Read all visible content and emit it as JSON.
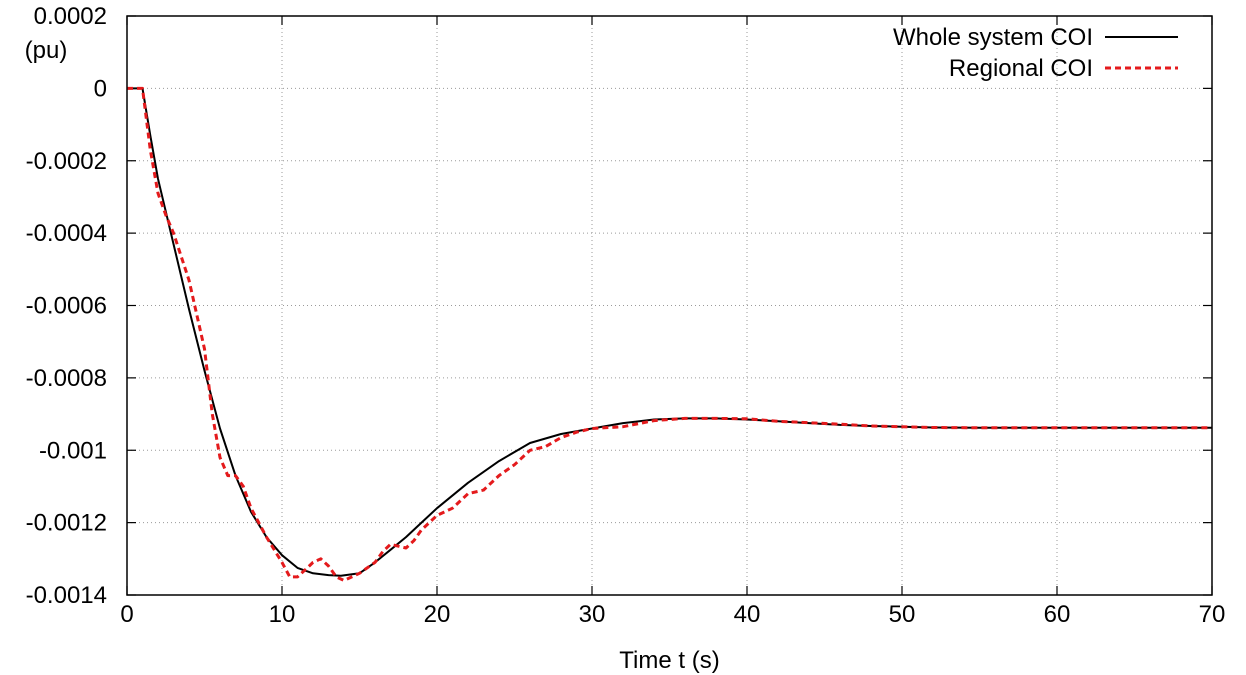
{
  "chart_data": {
    "type": "line",
    "title": "",
    "xlabel": "Time t (s)",
    "ylabel": "(pu)",
    "xlim": [
      0,
      70
    ],
    "ylim": [
      -0.0014,
      0.0002
    ],
    "xticks": [
      0,
      10,
      20,
      30,
      40,
      50,
      60,
      70
    ],
    "xtick_labels": [
      "0",
      "10",
      "20",
      "30",
      "40",
      "50",
      "60",
      "70"
    ],
    "yticks": [
      0.0002,
      0,
      -0.0002,
      -0.0004,
      -0.0006,
      -0.0008,
      -0.001,
      -0.0012,
      -0.0014
    ],
    "ytick_labels": [
      "0.0002",
      "0",
      "-0.0002",
      "-0.0004",
      "-0.0006",
      "-0.0008",
      "-0.001",
      "-0.0012",
      "-0.0014"
    ],
    "grid": true,
    "legend_position": "top-right",
    "series": [
      {
        "name": "Whole system COI",
        "color": "#000000",
        "style": "solid",
        "x": [
          0,
          1,
          1.5,
          2,
          3,
          4,
          5,
          6,
          7,
          8,
          9,
          10,
          11,
          12,
          13,
          13.8,
          15,
          16,
          17,
          18,
          19,
          20,
          22,
          24,
          26,
          28,
          30,
          32,
          34,
          36,
          38,
          40,
          42,
          44,
          46,
          48,
          50,
          52,
          55,
          58,
          60,
          65,
          70
        ],
        "y": [
          0,
          0,
          -0.00013,
          -0.00025,
          -0.00043,
          -0.00061,
          -0.00078,
          -0.00094,
          -0.00107,
          -0.00117,
          -0.00124,
          -0.00129,
          -0.001325,
          -0.00134,
          -0.001345,
          -0.001347,
          -0.00134,
          -0.00131,
          -0.001275,
          -0.00124,
          -0.0012,
          -0.00116,
          -0.00109,
          -0.00103,
          -0.00098,
          -0.000955,
          -0.00094,
          -0.000925,
          -0.000915,
          -0.000912,
          -0.000912,
          -0.000915,
          -0.00092,
          -0.000925,
          -0.00093,
          -0.000933,
          -0.000935,
          -0.000937,
          -0.000938,
          -0.000938,
          -0.000938,
          -0.000938,
          -0.000938
        ]
      },
      {
        "name": "Regional COI",
        "color": "#e41a1c",
        "style": "dashed",
        "x": [
          0,
          1,
          1.5,
          2,
          2.5,
          3,
          4,
          5,
          5.5,
          6,
          6.5,
          7,
          7.5,
          8,
          9,
          10,
          10.5,
          11,
          11.5,
          12,
          12.5,
          13,
          13.5,
          14,
          15,
          16,
          16.5,
          17,
          18,
          18.5,
          19,
          20,
          21,
          21.5,
          22,
          23,
          24,
          25,
          26,
          27,
          28,
          29,
          30,
          32,
          34,
          36,
          38,
          40,
          42,
          44,
          46,
          48,
          50,
          52,
          55,
          58,
          60,
          65,
          70
        ],
        "y": [
          0,
          0,
          -0.00017,
          -0.00029,
          -0.00035,
          -0.0004,
          -0.00053,
          -0.00072,
          -0.0009,
          -0.00102,
          -0.00107,
          -0.00107,
          -0.0011,
          -0.00116,
          -0.00124,
          -0.00131,
          -0.00135,
          -0.00135,
          -0.00133,
          -0.00131,
          -0.0013,
          -0.00132,
          -0.00135,
          -0.00136,
          -0.00134,
          -0.00131,
          -0.00128,
          -0.00126,
          -0.00127,
          -0.00125,
          -0.00122,
          -0.00118,
          -0.00116,
          -0.00114,
          -0.00112,
          -0.00111,
          -0.00107,
          -0.00104,
          -0.001,
          -0.00099,
          -0.000965,
          -0.00095,
          -0.00094,
          -0.000935,
          -0.000918,
          -0.000912,
          -0.000912,
          -0.000913,
          -0.00092,
          -0.000924,
          -0.000928,
          -0.000933,
          -0.000935,
          -0.000937,
          -0.000938,
          -0.000938,
          -0.000938,
          -0.000938,
          -0.000938
        ]
      }
    ]
  }
}
